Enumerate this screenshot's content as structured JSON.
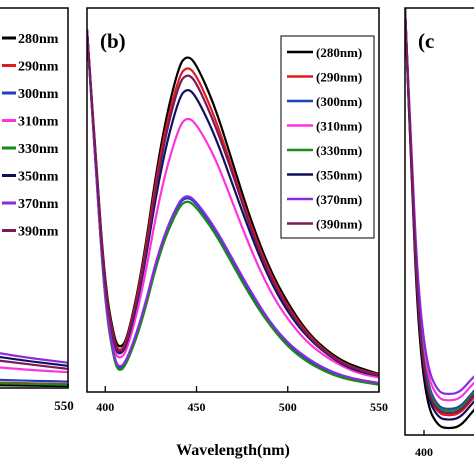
{
  "chart_data": [
    {
      "panel": "a",
      "type": "line",
      "title": "",
      "xlabel": "",
      "ylabel": "",
      "x_tick_labels": [
        "550"
      ],
      "xlim": [
        480,
        550
      ],
      "legend_placement": "top-right",
      "series": [
        {
          "name": "280nm",
          "color": "#000000",
          "x": [
            480,
            500,
            520,
            540,
            550
          ],
          "y": [
            0.02,
            0.01,
            0.006,
            0.004,
            0.003
          ]
        },
        {
          "name": "290nm",
          "color": "#e31a1c",
          "x": [
            480,
            500,
            520,
            540,
            550
          ],
          "y": [
            0.04,
            0.02,
            0.012,
            0.008,
            0.006
          ]
        },
        {
          "name": "300nm",
          "color": "#1f3fbf",
          "x": [
            480,
            500,
            520,
            540,
            550
          ],
          "y": [
            0.06,
            0.03,
            0.018,
            0.012,
            0.01
          ]
        },
        {
          "name": "310nm",
          "color": "#ff33dd",
          "x": [
            480,
            500,
            520,
            540,
            550
          ],
          "y": [
            0.12,
            0.07,
            0.045,
            0.03,
            0.025
          ]
        },
        {
          "name": "330nm",
          "color": "#1a8a1a",
          "x": [
            480,
            500,
            520,
            540,
            550
          ],
          "y": [
            0.03,
            0.015,
            0.01,
            0.007,
            0.005
          ]
        },
        {
          "name": "350nm",
          "color": "#101060",
          "x": [
            480,
            500,
            520,
            540,
            550
          ],
          "y": [
            0.18,
            0.11,
            0.07,
            0.045,
            0.035
          ]
        },
        {
          "name": "370nm",
          "color": "#8a2be2",
          "x": [
            480,
            500,
            520,
            540,
            550
          ],
          "y": [
            0.2,
            0.13,
            0.08,
            0.05,
            0.04
          ]
        },
        {
          "name": "390nm",
          "color": "#7a1a5a",
          "x": [
            480,
            500,
            520,
            540,
            550
          ],
          "y": [
            0.15,
            0.09,
            0.06,
            0.04,
            0.03
          ]
        }
      ]
    },
    {
      "panel": "b",
      "panel_label": "(b)",
      "type": "line",
      "title": "",
      "xlabel": "Wavelength(nm)",
      "ylabel": "",
      "x_ticks": [
        400,
        450,
        500,
        550
      ],
      "xlim": [
        390,
        550
      ],
      "ylim": [
        0,
        1
      ],
      "legend_placement": "top-right",
      "series": [
        {
          "name": "(280nm)",
          "color": "#000000",
          "x": [
            390,
            395,
            400,
            405,
            408,
            412,
            420,
            430,
            440,
            445,
            450,
            460,
            470,
            480,
            490,
            500,
            510,
            520,
            530,
            540,
            550
          ],
          "y": [
            1.0,
            0.63,
            0.29,
            0.145,
            0.12,
            0.145,
            0.33,
            0.68,
            0.9,
            0.93,
            0.905,
            0.79,
            0.63,
            0.47,
            0.34,
            0.245,
            0.17,
            0.12,
            0.085,
            0.065,
            0.05
          ]
        },
        {
          "name": "(290nm)",
          "color": "#e31a1c",
          "x": [
            390,
            395,
            400,
            405,
            408,
            412,
            420,
            430,
            440,
            445,
            450,
            460,
            470,
            480,
            490,
            500,
            510,
            520,
            530,
            540,
            550
          ],
          "y": [
            1.0,
            0.62,
            0.28,
            0.135,
            0.11,
            0.14,
            0.32,
            0.66,
            0.87,
            0.9,
            0.875,
            0.76,
            0.61,
            0.455,
            0.33,
            0.235,
            0.165,
            0.115,
            0.08,
            0.06,
            0.048
          ]
        },
        {
          "name": "(300nm)",
          "color": "#1f3fbf",
          "x": [
            390,
            395,
            400,
            405,
            408,
            412,
            420,
            430,
            440,
            445,
            450,
            460,
            470,
            480,
            490,
            500,
            510,
            520,
            530,
            540,
            550
          ],
          "y": [
            1.0,
            0.6,
            0.24,
            0.085,
            0.06,
            0.085,
            0.2,
            0.4,
            0.52,
            0.54,
            0.52,
            0.45,
            0.36,
            0.27,
            0.19,
            0.13,
            0.09,
            0.06,
            0.04,
            0.03,
            0.022
          ]
        },
        {
          "name": "(310nm)",
          "color": "#ff33dd",
          "x": [
            390,
            395,
            400,
            405,
            408,
            412,
            420,
            430,
            440,
            445,
            450,
            460,
            470,
            480,
            490,
            500,
            510,
            520,
            530,
            540,
            550
          ],
          "y": [
            1.0,
            0.61,
            0.26,
            0.11,
            0.09,
            0.115,
            0.27,
            0.55,
            0.73,
            0.76,
            0.74,
            0.65,
            0.52,
            0.39,
            0.28,
            0.2,
            0.14,
            0.1,
            0.07,
            0.05,
            0.04
          ]
        },
        {
          "name": "(330nm)",
          "color": "#1a8a1a",
          "x": [
            390,
            395,
            400,
            405,
            408,
            412,
            420,
            430,
            440,
            445,
            450,
            460,
            470,
            480,
            490,
            500,
            510,
            520,
            530,
            540,
            550
          ],
          "y": [
            1.0,
            0.6,
            0.235,
            0.08,
            0.055,
            0.08,
            0.19,
            0.39,
            0.51,
            0.53,
            0.51,
            0.44,
            0.35,
            0.26,
            0.185,
            0.125,
            0.085,
            0.057,
            0.038,
            0.028,
            0.02
          ]
        },
        {
          "name": "(350nm)",
          "color": "#101060",
          "x": [
            390,
            395,
            400,
            405,
            408,
            412,
            420,
            430,
            440,
            445,
            450,
            460,
            470,
            480,
            490,
            500,
            510,
            520,
            530,
            540,
            550
          ],
          "y": [
            1.0,
            0.61,
            0.27,
            0.125,
            0.1,
            0.13,
            0.3,
            0.61,
            0.81,
            0.84,
            0.815,
            0.71,
            0.57,
            0.43,
            0.31,
            0.22,
            0.155,
            0.11,
            0.075,
            0.055,
            0.045
          ]
        },
        {
          "name": "(370nm)",
          "color": "#8a2be2",
          "x": [
            390,
            395,
            400,
            405,
            408,
            412,
            420,
            430,
            440,
            445,
            450,
            460,
            470,
            480,
            490,
            500,
            510,
            520,
            530,
            540,
            550
          ],
          "y": [
            1.0,
            0.6,
            0.245,
            0.09,
            0.065,
            0.09,
            0.205,
            0.405,
            0.525,
            0.545,
            0.525,
            0.455,
            0.365,
            0.275,
            0.195,
            0.135,
            0.095,
            0.065,
            0.045,
            0.033,
            0.025
          ]
        },
        {
          "name": "(390nm)",
          "color": "#7a1a5a",
          "x": [
            390,
            395,
            400,
            405,
            408,
            412,
            420,
            430,
            440,
            445,
            450,
            460,
            470,
            480,
            490,
            500,
            510,
            520,
            530,
            540,
            550
          ],
          "y": [
            1.0,
            0.62,
            0.275,
            0.13,
            0.105,
            0.135,
            0.31,
            0.64,
            0.85,
            0.88,
            0.855,
            0.74,
            0.6,
            0.445,
            0.32,
            0.23,
            0.16,
            0.112,
            0.078,
            0.058,
            0.046
          ]
        }
      ]
    },
    {
      "panel": "c",
      "panel_label": "(c",
      "type": "line",
      "title": "",
      "xlabel": "",
      "ylabel": "",
      "x_tick_labels": [
        "400"
      ],
      "xlim": [
        390,
        440
      ],
      "series": [
        {
          "color": "#000000",
          "x": [
            390,
            393,
            396,
            400,
            405,
            410,
            415,
            420,
            425,
            428,
            432,
            436,
            440
          ],
          "y": [
            1.0,
            0.6,
            0.25,
            0.07,
            0.02,
            0.015,
            0.02,
            0.05,
            0.08,
            0.06,
            0.05,
            0.1,
            0.2
          ]
        },
        {
          "color": "#e31a1c",
          "x": [
            390,
            393,
            396,
            400,
            405,
            410,
            415,
            420,
            425,
            428,
            432,
            436,
            440
          ],
          "y": [
            1.0,
            0.62,
            0.28,
            0.1,
            0.05,
            0.045,
            0.05,
            0.08,
            0.11,
            0.09,
            0.08,
            0.13,
            0.23
          ]
        },
        {
          "color": "#1f3fbf",
          "x": [
            390,
            393,
            396,
            400,
            405,
            410,
            415,
            420,
            425,
            428,
            432,
            436,
            440
          ],
          "y": [
            1.0,
            0.63,
            0.3,
            0.12,
            0.065,
            0.06,
            0.065,
            0.095,
            0.125,
            0.1,
            0.09,
            0.14,
            0.24
          ]
        },
        {
          "color": "#ff33dd",
          "x": [
            390,
            393,
            396,
            400,
            405,
            410,
            415,
            420,
            425,
            428,
            432,
            436,
            440
          ],
          "y": [
            1.0,
            0.64,
            0.32,
            0.14,
            0.085,
            0.08,
            0.085,
            0.115,
            0.14,
            0.12,
            0.11,
            0.16,
            0.26
          ]
        },
        {
          "color": "#1a8a1a",
          "x": [
            390,
            393,
            396,
            400,
            405,
            410,
            415,
            420,
            425,
            428,
            432,
            436,
            440
          ],
          "y": [
            1.0,
            0.63,
            0.29,
            0.11,
            0.06,
            0.055,
            0.06,
            0.09,
            0.12,
            0.095,
            0.085,
            0.135,
            0.235
          ]
        },
        {
          "color": "#101060",
          "x": [
            390,
            393,
            396,
            400,
            405,
            410,
            415,
            420,
            425,
            428,
            432,
            436,
            440
          ],
          "y": [
            1.0,
            0.61,
            0.27,
            0.09,
            0.04,
            0.035,
            0.04,
            0.07,
            0.1,
            0.08,
            0.07,
            0.12,
            0.22
          ]
        },
        {
          "color": "#8a2be2",
          "x": [
            390,
            393,
            396,
            400,
            405,
            410,
            415,
            420,
            425,
            428,
            432,
            436,
            440
          ],
          "y": [
            1.0,
            0.65,
            0.34,
            0.16,
            0.1,
            0.095,
            0.1,
            0.13,
            0.155,
            0.135,
            0.125,
            0.175,
            0.28
          ]
        },
        {
          "color": "#7a1a5a",
          "x": [
            390,
            393,
            396,
            400,
            405,
            410,
            415,
            420,
            425,
            428,
            432,
            436,
            440
          ],
          "y": [
            1.0,
            0.62,
            0.28,
            0.1,
            0.055,
            0.05,
            0.055,
            0.085,
            0.115,
            0.09,
            0.08,
            0.13,
            0.23
          ]
        }
      ]
    }
  ]
}
